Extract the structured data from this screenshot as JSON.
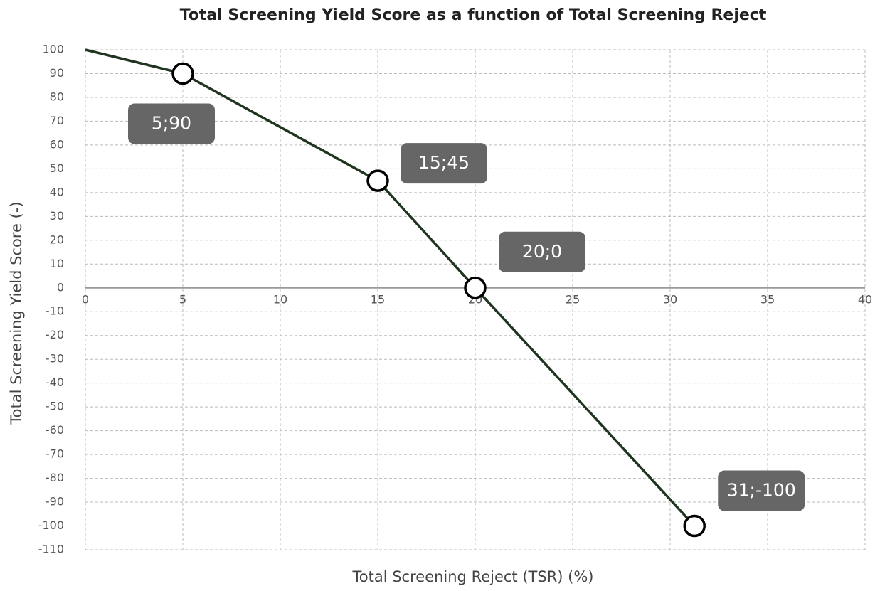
{
  "chart_data": {
    "type": "line",
    "title": "Total Screening Yield Score as a function of Total Screening Reject",
    "x_label": "Total Screening Reject (TSR) (%)",
    "y_label": "Total Screening Yield Score  (-)",
    "x": [
      0,
      5,
      15,
      20,
      31.25
    ],
    "values": [
      100,
      90,
      45,
      0,
      -100
    ],
    "value_labels": [
      null,
      "5;90",
      "15;45",
      "20;0",
      "31;-100"
    ],
    "color": "#1f351f",
    "xlim": [
      0,
      40
    ],
    "xticks": [
      0,
      5,
      10,
      15,
      20,
      25,
      30,
      35,
      40
    ],
    "ylim": [
      -110,
      100
    ],
    "yticks": [
      100,
      90,
      80,
      70,
      60,
      50,
      40,
      30,
      20,
      10,
      0,
      -10,
      -20,
      -30,
      -40,
      -50,
      -60,
      -70,
      -80,
      -90,
      -100,
      -110
    ],
    "grid": true
  }
}
